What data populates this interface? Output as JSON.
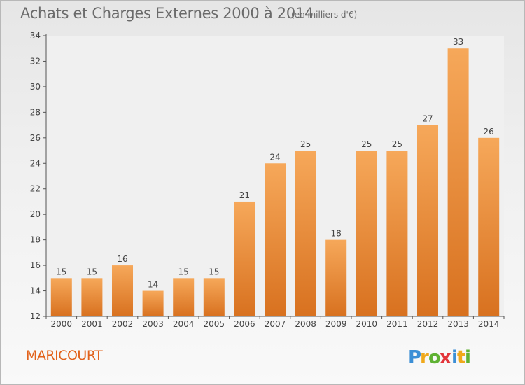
{
  "chart_data": {
    "type": "bar",
    "title": "Achats et Charges Externes 2000 à 2014",
    "subtitle": "(en milliers d'€)",
    "categories": [
      "2000",
      "2001",
      "2002",
      "2003",
      "2004",
      "2005",
      "2006",
      "2007",
      "2008",
      "2009",
      "2010",
      "2011",
      "2012",
      "2013",
      "2014"
    ],
    "values": [
      15,
      15,
      16,
      14,
      15,
      15,
      21,
      24,
      25,
      18,
      25,
      25,
      27,
      33,
      26
    ],
    "ylim": [
      12,
      34
    ],
    "yticks": [
      12,
      14,
      16,
      18,
      20,
      22,
      24,
      26,
      28,
      30,
      32,
      34
    ],
    "xlabel": "",
    "ylabel": "",
    "grid": false,
    "bar_color_top": "#f6a85a",
    "bar_color_bottom": "#d8711f"
  },
  "commune": "MARICOURT",
  "brand": {
    "letters": [
      "P",
      "r",
      "o",
      "x",
      "i",
      "t",
      "i"
    ],
    "colors": [
      "#3c8fd6",
      "#f0a91b",
      "#5fb233",
      "#e3353a",
      "#3c8fd6",
      "#f0a91b",
      "#5fb233"
    ]
  }
}
